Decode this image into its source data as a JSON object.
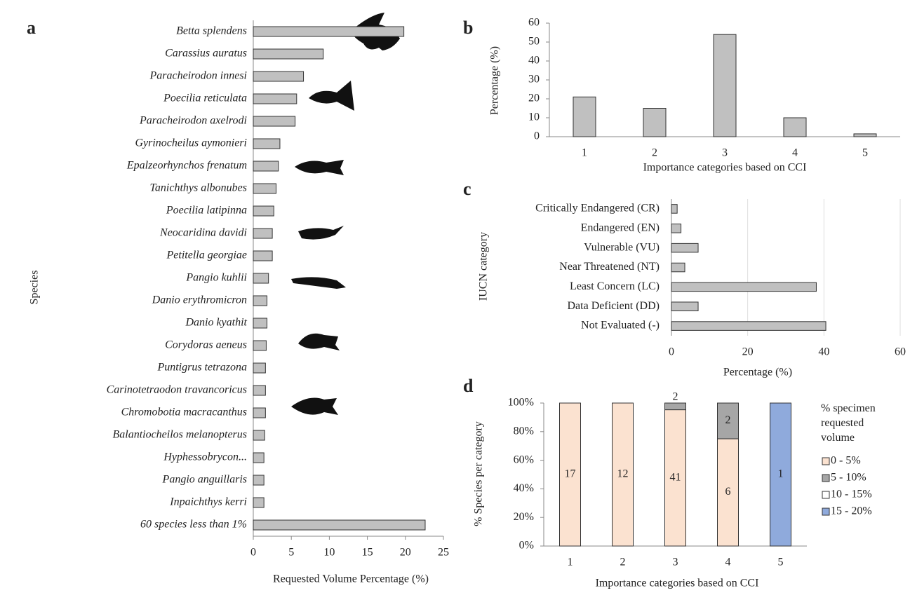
{
  "chart_data": [
    {
      "type": "bar",
      "orientation": "horizontal",
      "panel_label": "a",
      "color": "#c0c0c0",
      "categories": [
        "Betta splendens",
        "Carassius auratus",
        "Paracheirodon innesi",
        "Poecilia reticulata",
        "Paracheirodon axelrodi",
        "Gyrinocheilus aymonieri",
        "Epalzeorhynchos frenatum",
        "Tanichthys albonubes",
        "Poecilia latipinna",
        "Neocaridina davidi",
        "Petitella georgiae",
        "Pangio kuhlii",
        "Danio erythromicron",
        "Danio kyathit",
        "Corydoras aeneus",
        "Puntigrus tetrazona",
        "Carinotetraodon travancoricus",
        "Chromobotia macracanthus",
        "Balantiocheilos melanopterus",
        "Hyphessobrycon...",
        "Pangio anguillaris",
        "Inpaichthys kerri",
        "60 species less than 1%"
      ],
      "values": [
        19.8,
        9.2,
        6.6,
        5.7,
        5.5,
        3.5,
        3.3,
        3.0,
        2.7,
        2.5,
        2.5,
        2.0,
        1.8,
        1.8,
        1.7,
        1.6,
        1.6,
        1.6,
        1.5,
        1.4,
        1.4,
        1.4,
        22.6
      ],
      "xlim": [
        0,
        25
      ],
      "xticks": [
        0,
        5,
        10,
        15,
        20,
        25
      ],
      "x_label": "Requested Volume Percentage (%)",
      "y_label": "Species",
      "grid": false
    },
    {
      "type": "bar",
      "orientation": "vertical",
      "panel_label": "b",
      "color": "#c0c0c0",
      "categories": [
        "1",
        "2",
        "3",
        "4",
        "5"
      ],
      "values": [
        21,
        15,
        54,
        10,
        1.5
      ],
      "ylim": [
        0,
        60
      ],
      "yticks": [
        0,
        10,
        20,
        30,
        40,
        50,
        60
      ],
      "x_label": "Importance categories based on CCI",
      "y_label": "Percentage (%)",
      "grid": false
    },
    {
      "type": "bar",
      "orientation": "horizontal",
      "panel_label": "c",
      "color": "#c0c0c0",
      "categories": [
        "Critically Endangered (CR)",
        "Endangered (EN)",
        "Vulnerable (VU)",
        "Near Threatened (NT)",
        "Least Concern  (LC)",
        "Data Deficient  (DD)",
        "Not Evaluated (-)"
      ],
      "values": [
        1.5,
        2.5,
        7,
        3.5,
        38,
        7,
        40.5
      ],
      "xlim": [
        0,
        60
      ],
      "xticks": [
        0,
        20,
        40,
        60
      ],
      "x_label": "Percentage (%)",
      "y_label": "IUCN category",
      "grid": true
    },
    {
      "type": "stacked_bar",
      "panel_label": "d",
      "categories": [
        "1",
        "2",
        "3",
        "4",
        "5"
      ],
      "series": [
        {
          "name": "0 - 5%",
          "color": "#fbe2d0",
          "values": [
            100,
            100,
            95.3,
            75,
            0
          ],
          "counts": [
            17,
            12,
            41,
            6,
            null
          ]
        },
        {
          "name": "5 - 10%",
          "color": "#a6a6a6",
          "values": [
            0,
            0,
            4.7,
            25,
            0
          ],
          "counts": [
            null,
            null,
            2,
            2,
            null
          ]
        },
        {
          "name": "10 - 15%",
          "color": "#ffffff",
          "values": [
            0,
            0,
            0,
            0,
            0
          ],
          "counts": [
            null,
            null,
            null,
            null,
            null
          ]
        },
        {
          "name": "15 - 20%",
          "color": "#8faadc",
          "values": [
            0,
            0,
            0,
            0,
            100
          ],
          "counts": [
            null,
            null,
            null,
            null,
            1
          ]
        }
      ],
      "ylim": [
        0,
        100
      ],
      "yticks": [
        {
          "value": 0,
          "label": "0%"
        },
        {
          "value": 20,
          "label": "20%"
        },
        {
          "value": 40,
          "label": "40%"
        },
        {
          "value": 60,
          "label": "60%"
        },
        {
          "value": 80,
          "label": "80%"
        },
        {
          "value": 100,
          "label": "100%"
        }
      ],
      "legend_title": "% specimen requested volume",
      "x_label": "Importance categories based on CCI",
      "y_label": "% Species per category",
      "grid": false
    }
  ]
}
